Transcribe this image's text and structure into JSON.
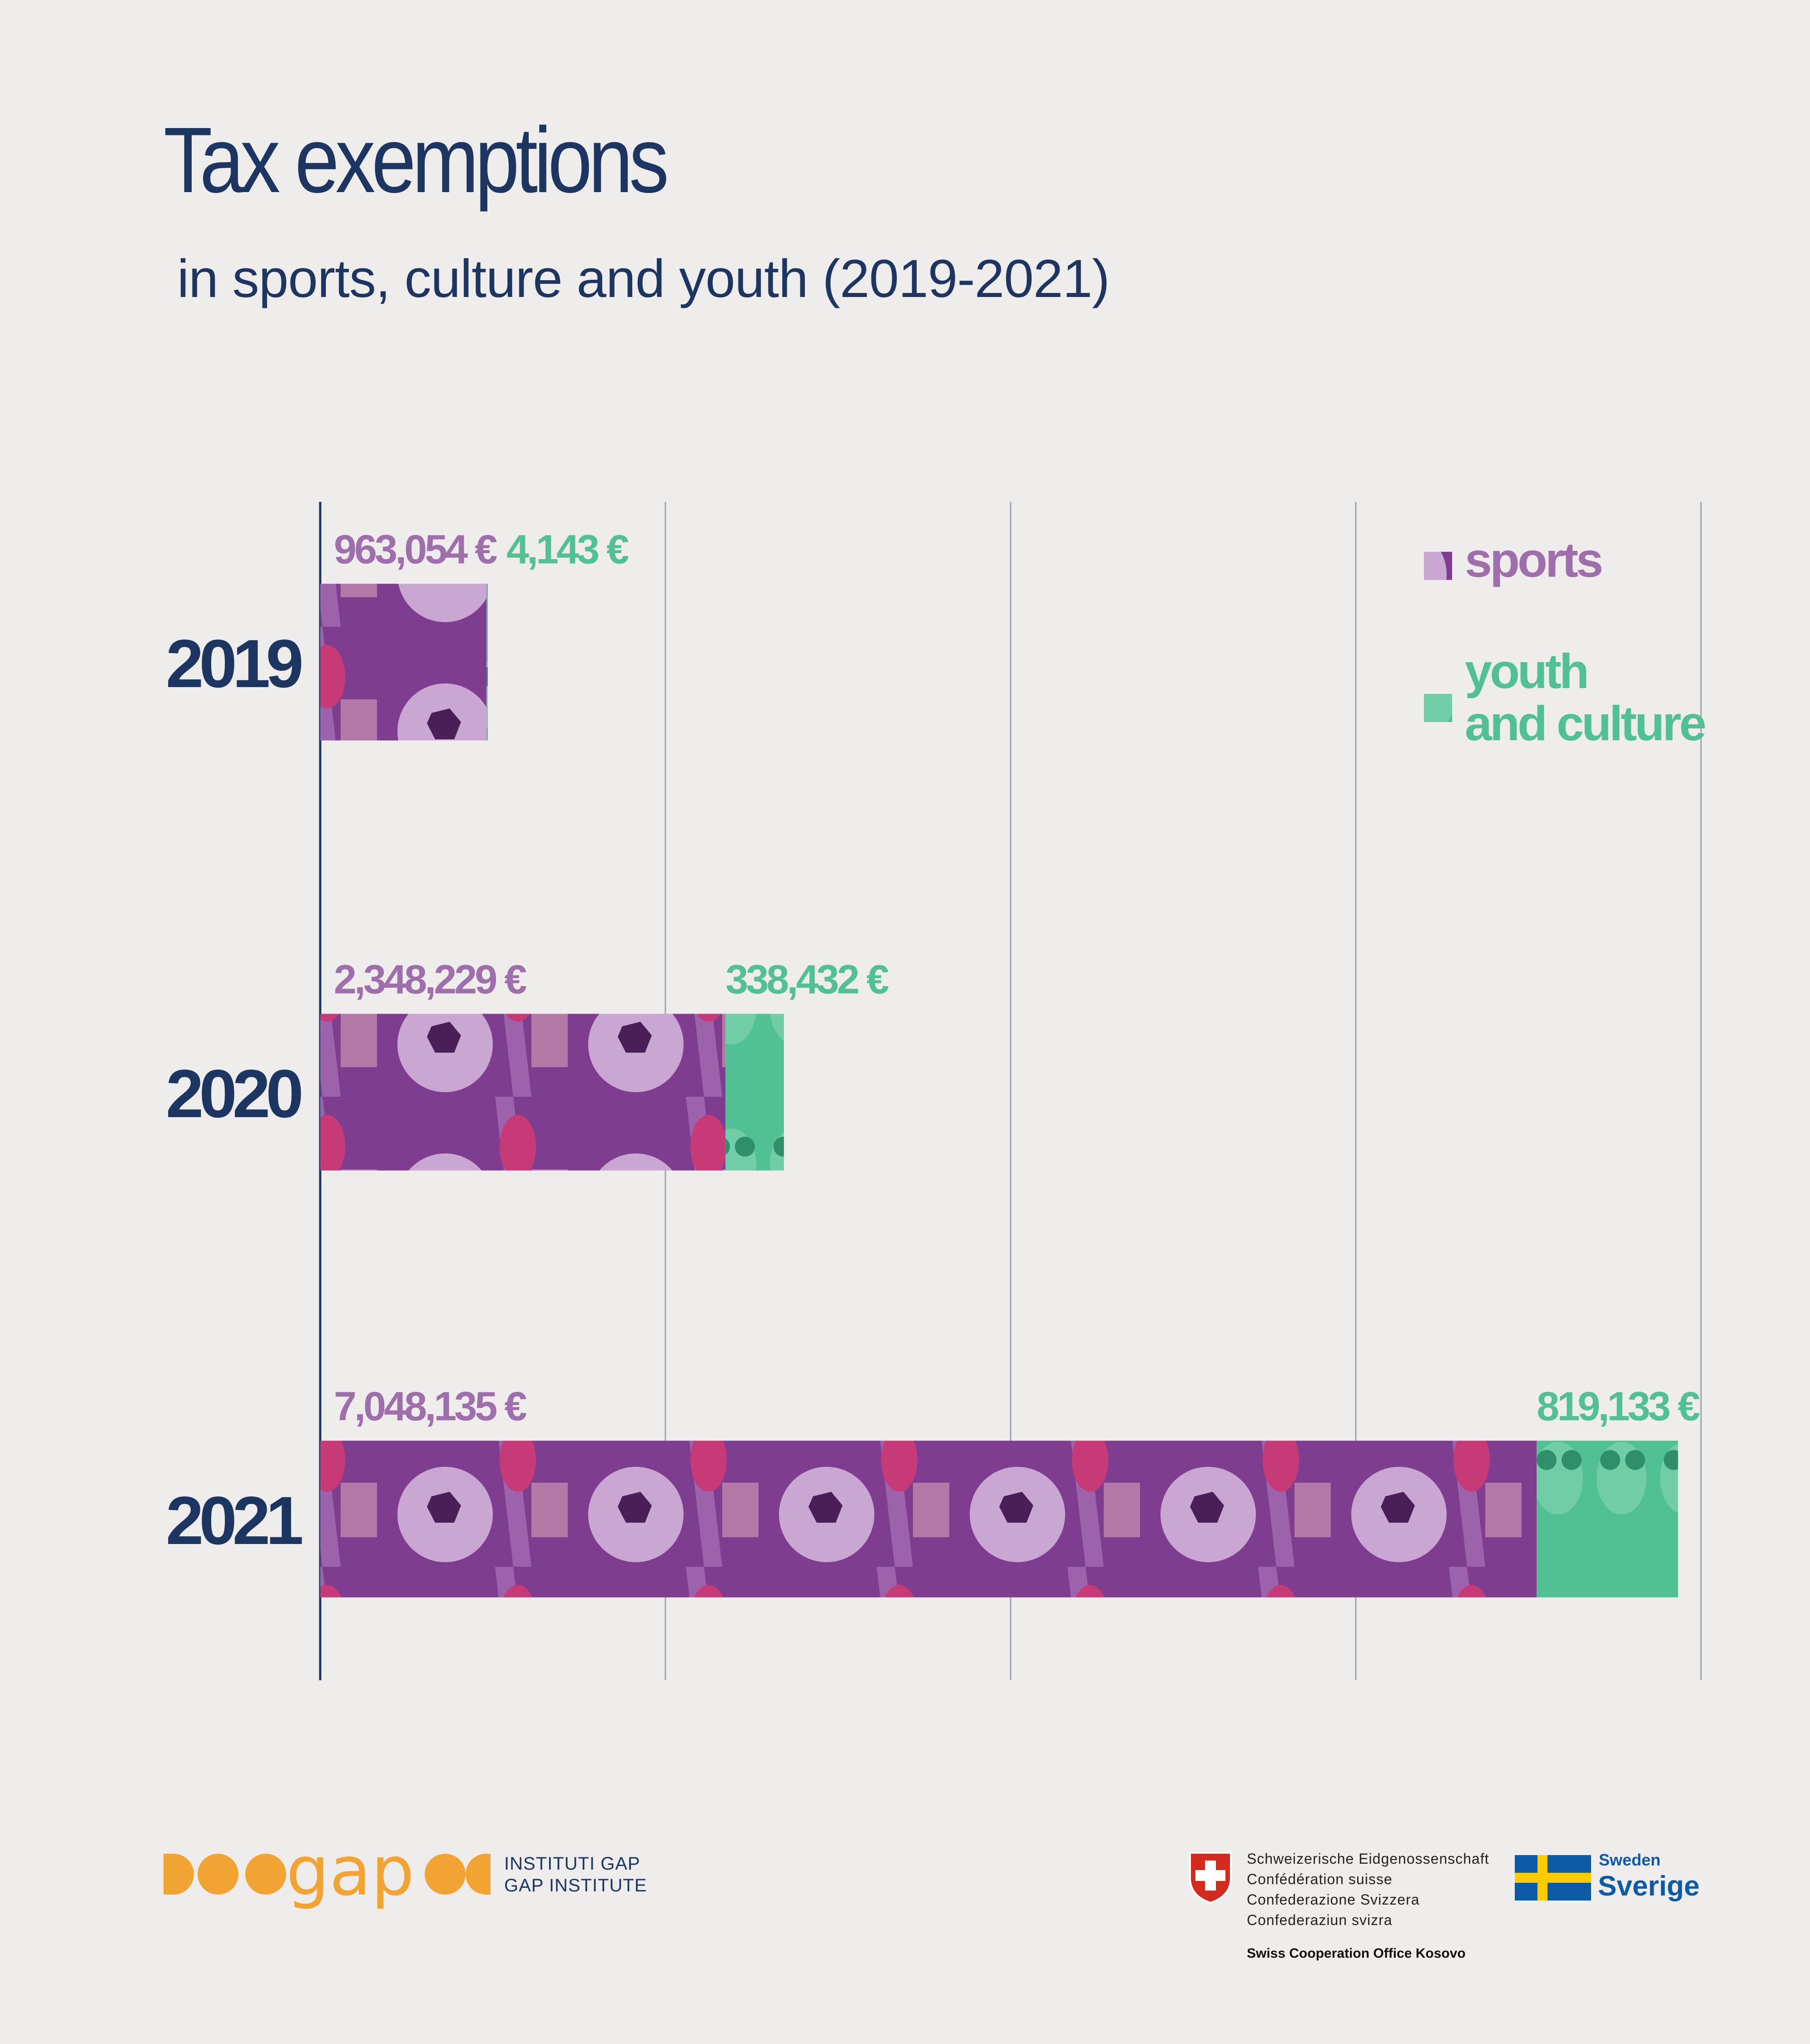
{
  "title": "Tax exemptions",
  "subtitle": "in sports, culture and youth (2019-2021)",
  "colors": {
    "title": "#1c3561",
    "sports": "#9f6fab",
    "youth_culture": "#52c095",
    "axis": "#1c3561",
    "grid": "#9aa3b5",
    "gap_orange": "#f1a434",
    "swiss_red": "#d52b1e",
    "sweden_blue": "#0d5aa7",
    "sweden_yellow": "#fecb00"
  },
  "chart_data": {
    "type": "bar",
    "orientation": "horizontal",
    "stacked": true,
    "categories": [
      "2019",
      "2020",
      "2021"
    ],
    "series": [
      {
        "name": "sports",
        "values": [
          963054,
          2348229,
          7048135
        ],
        "labels": [
          "963,054 €",
          "2,348,229 €",
          "7,048,135 €"
        ]
      },
      {
        "name": "youth\nand culture",
        "values": [
          4143,
          338432,
          819133
        ],
        "labels": [
          "4,143 €",
          "338,432 €",
          "819,133 €"
        ]
      }
    ],
    "xlim": [
      0,
      8000000
    ],
    "grid": true,
    "legend_position": "top-right"
  },
  "legend": {
    "sports_label": "sports",
    "youth_line1": "youth",
    "youth_line2": "and culture"
  },
  "footer": {
    "gap_logo_text": "gap",
    "gap_line1": "INSTITUTI GAP",
    "gap_line2": "GAP INSTITUTE",
    "swiss_lines": [
      "Schweizerische Eidgenossenschaft",
      "Confédération suisse",
      "Confederazione Svizzera",
      "Confederaziun svizra"
    ],
    "swiss_office": "Swiss Cooperation Office Kosovo",
    "sweden_small": "Sweden",
    "sweden_big": "Sverige"
  }
}
